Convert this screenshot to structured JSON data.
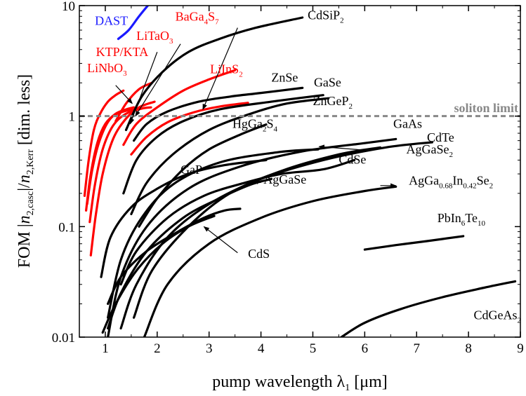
{
  "chart_data": {
    "type": "line",
    "title": "",
    "x_axis": {
      "label": "pump wavelength λ",
      "label_sub": "1",
      "label_unit": " [μm]",
      "range": [
        0.5,
        9
      ],
      "ticks": [
        1,
        2,
        3,
        4,
        5,
        6,
        7,
        8,
        9
      ]
    },
    "y_axis": {
      "label_prefix": "FOM |",
      "n1": "n",
      "n1_sub": "2,casc",
      "mid": "|/",
      "n2": "n",
      "n2_sub": "2,Kerr",
      "label_suffix": " [dim. less]",
      "scale": "log",
      "range": [
        0.01,
        10
      ],
      "ticks": [
        {
          "value": 0.01,
          "label": "0.01"
        },
        {
          "value": 0.1,
          "label": "0.1"
        },
        {
          "value": 1,
          "label": "1"
        },
        {
          "value": 10,
          "label": "10"
        }
      ]
    },
    "reference_line": {
      "value": 1,
      "label": "soliton limit",
      "color": "#888888"
    },
    "series": [
      {
        "color": "#1a1aff",
        "points": [
          [
            1.25,
            5.0
          ],
          [
            1.45,
            6.0
          ],
          [
            1.65,
            8.0
          ],
          [
            1.82,
            10.0
          ]
        ]
      },
      {
        "color": "#ff0000",
        "points": [
          [
            0.6,
            0.19
          ],
          [
            0.68,
            0.4
          ],
          [
            0.78,
            0.75
          ],
          [
            0.9,
            1.05
          ],
          [
            1.05,
            1.35
          ],
          [
            1.2,
            1.55
          ],
          [
            1.35,
            1.7
          ]
        ]
      },
      {
        "color": "#ff0000",
        "points": [
          [
            0.63,
            0.14
          ],
          [
            0.72,
            0.3
          ],
          [
            0.85,
            0.58
          ],
          [
            1.0,
            0.85
          ],
          [
            1.2,
            1.05
          ],
          [
            1.4,
            1.15
          ],
          [
            1.55,
            1.2
          ]
        ]
      },
      {
        "color": "#ff0000",
        "points": [
          [
            0.65,
            0.16
          ],
          [
            0.75,
            0.33
          ],
          [
            0.9,
            0.62
          ],
          [
            1.1,
            0.95
          ],
          [
            1.35,
            1.1
          ],
          [
            1.6,
            1.15
          ]
        ]
      },
      {
        "color": "#ff0000",
        "points": [
          [
            0.7,
            0.11
          ],
          [
            0.8,
            0.24
          ],
          [
            0.95,
            0.5
          ],
          [
            1.15,
            0.82
          ],
          [
            1.4,
            1.05
          ],
          [
            1.7,
            1.17
          ],
          [
            1.88,
            1.2
          ]
        ]
      },
      {
        "color": "#ff0000",
        "points": [
          [
            0.72,
            0.055
          ],
          [
            0.82,
            0.13
          ],
          [
            0.95,
            0.3
          ],
          [
            1.15,
            0.62
          ],
          [
            1.4,
            0.95
          ],
          [
            1.65,
            1.2
          ],
          [
            1.95,
            1.35
          ]
        ]
      },
      {
        "color": "#ff0000",
        "points": [
          [
            1.2,
            0.9
          ],
          [
            1.4,
            1.3
          ],
          [
            1.65,
            1.75
          ],
          [
            1.9,
            2.0
          ]
        ]
      },
      {
        "color": "#ff0000",
        "points": [
          [
            1.35,
            0.55
          ],
          [
            1.6,
            0.85
          ],
          [
            2.0,
            1.2
          ],
          [
            2.5,
            1.7
          ],
          [
            3.0,
            2.15
          ],
          [
            3.5,
            2.6
          ]
        ]
      },
      {
        "color": "#ff0000",
        "points": [
          [
            1.5,
            0.45
          ],
          [
            1.8,
            0.65
          ],
          [
            2.2,
            0.88
          ],
          [
            2.7,
            1.08
          ],
          [
            3.2,
            1.22
          ],
          [
            3.75,
            1.32
          ]
        ]
      },
      {
        "color": "#000000",
        "points": [
          [
            1.4,
            0.75
          ],
          [
            1.7,
            1.5
          ],
          [
            2.1,
            2.5
          ],
          [
            2.6,
            3.8
          ],
          [
            3.2,
            5.0
          ],
          [
            3.9,
            6.3
          ],
          [
            4.8,
            7.8
          ]
        ]
      },
      {
        "color": "#000000",
        "points": [
          [
            1.55,
            0.6
          ],
          [
            1.8,
            0.85
          ],
          [
            2.2,
            1.1
          ],
          [
            2.8,
            1.35
          ],
          [
            3.4,
            1.5
          ],
          [
            4.0,
            1.62
          ],
          [
            4.8,
            1.8
          ]
        ]
      },
      {
        "color": "#000000",
        "points": [
          [
            1.35,
            0.2
          ],
          [
            1.6,
            0.4
          ],
          [
            2.0,
            0.65
          ],
          [
            2.5,
            0.9
          ],
          [
            3.2,
            1.15
          ],
          [
            4.2,
            1.35
          ],
          [
            5.2,
            1.55
          ]
        ]
      },
      {
        "color": "#000000",
        "points": [
          [
            1.5,
            0.13
          ],
          [
            1.8,
            0.25
          ],
          [
            2.3,
            0.45
          ],
          [
            3.0,
            0.75
          ],
          [
            3.8,
            1.05
          ],
          [
            4.5,
            1.3
          ],
          [
            5.3,
            1.45
          ]
        ]
      },
      {
        "color": "#000000",
        "points": [
          [
            1.65,
            0.1
          ],
          [
            2.0,
            0.18
          ],
          [
            2.5,
            0.33
          ],
          [
            3.0,
            0.5
          ],
          [
            3.6,
            0.68
          ],
          [
            4.1,
            0.84
          ]
        ]
      },
      {
        "color": "#000000",
        "points": [
          [
            0.92,
            0.035
          ],
          [
            1.1,
            0.08
          ],
          [
            1.5,
            0.15
          ],
          [
            2.0,
            0.22
          ],
          [
            2.6,
            0.3
          ],
          [
            3.3,
            0.36
          ],
          [
            4.1,
            0.4
          ]
        ]
      },
      {
        "color": "#000000",
        "points": [
          [
            1.05,
            0.015
          ],
          [
            1.3,
            0.05
          ],
          [
            1.7,
            0.12
          ],
          [
            2.3,
            0.24
          ],
          [
            3.2,
            0.38
          ],
          [
            4.3,
            0.47
          ],
          [
            5.1,
            0.5
          ]
        ]
      },
      {
        "color": "#000000",
        "points": [
          [
            1.05,
            0.01
          ],
          [
            1.3,
            0.035
          ],
          [
            1.8,
            0.1
          ],
          [
            2.6,
            0.22
          ],
          [
            3.6,
            0.35
          ],
          [
            4.8,
            0.48
          ],
          [
            6.0,
            0.57
          ],
          [
            6.6,
            0.62
          ]
        ]
      },
      {
        "color": "#000000",
        "points": [
          [
            1.3,
            0.012
          ],
          [
            1.6,
            0.03
          ],
          [
            2.2,
            0.08
          ],
          [
            3.0,
            0.16
          ],
          [
            4.0,
            0.27
          ],
          [
            5.2,
            0.4
          ],
          [
            6.4,
            0.52
          ],
          [
            7.3,
            0.58
          ]
        ]
      },
      {
        "color": "#000000",
        "points": [
          [
            1.55,
            0.015
          ],
          [
            1.9,
            0.04
          ],
          [
            2.6,
            0.1
          ],
          [
            3.4,
            0.2
          ],
          [
            4.4,
            0.32
          ],
          [
            5.5,
            0.45
          ],
          [
            6.3,
            0.52
          ]
        ]
      },
      {
        "color": "#000000",
        "points": [
          [
            1.3,
            0.03
          ],
          [
            1.6,
            0.06
          ],
          [
            2.2,
            0.12
          ],
          [
            2.9,
            0.19
          ],
          [
            3.7,
            0.25
          ],
          [
            4.4,
            0.3
          ],
          [
            5.2,
            0.33
          ],
          [
            5.8,
            0.4
          ]
        ]
      },
      {
        "color": "#000000",
        "points": [
          [
            1.05,
            0.012
          ],
          [
            1.3,
            0.025
          ],
          [
            1.8,
            0.06
          ],
          [
            2.5,
            0.12
          ],
          [
            3.2,
            0.18
          ],
          [
            3.8,
            0.24
          ],
          [
            4.2,
            0.27
          ]
        ]
      },
      {
        "color": "#000000",
        "points": [
          [
            1.75,
            0.01
          ],
          [
            2.2,
            0.03
          ],
          [
            3.0,
            0.07
          ],
          [
            4.0,
            0.12
          ],
          [
            5.0,
            0.17
          ],
          [
            6.0,
            0.21
          ],
          [
            6.6,
            0.23
          ]
        ]
      },
      {
        "color": "#000000",
        "points": [
          [
            1.05,
            0.02
          ],
          [
            1.3,
            0.035
          ],
          [
            1.8,
            0.06
          ],
          [
            2.4,
            0.09
          ],
          [
            2.9,
            0.12
          ],
          [
            3.3,
            0.14
          ],
          [
            3.6,
            0.145
          ]
        ]
      },
      {
        "color": "#000000",
        "points": [
          [
            0.95,
            0.011
          ],
          [
            1.2,
            0.02
          ],
          [
            1.6,
            0.04
          ],
          [
            2.1,
            0.07
          ],
          [
            2.6,
            0.1
          ],
          [
            3.1,
            0.125
          ]
        ]
      },
      {
        "color": "#000000",
        "points": [
          [
            6.0,
            0.062
          ],
          [
            6.6,
            0.068
          ],
          [
            7.2,
            0.074
          ],
          [
            7.9,
            0.082
          ]
        ]
      },
      {
        "color": "#000000",
        "points": [
          [
            5.55,
            0.01
          ],
          [
            6.0,
            0.0135
          ],
          [
            6.7,
            0.018
          ],
          [
            7.5,
            0.023
          ],
          [
            8.3,
            0.028
          ],
          [
            8.9,
            0.032
          ]
        ]
      }
    ],
    "labels": [
      {
        "text": "DAST",
        "sub": "",
        "text2": "",
        "sub2": "",
        "text3": "",
        "sub3": "",
        "color": "#1a1aff",
        "x": 0.8,
        "y": 6.7
      },
      {
        "text": "CdSiP",
        "sub": "2",
        "text2": "",
        "sub2": "",
        "text3": "",
        "sub3": "",
        "color": "#000000",
        "x": 4.9,
        "y": 7.5
      },
      {
        "text": "BaGa",
        "sub": "4",
        "text2": "S",
        "sub2": "7",
        "text3": "",
        "sub3": "",
        "color": "#ff0000",
        "x": 2.35,
        "y": 7.3
      },
      {
        "text": "LiTaO",
        "sub": "3",
        "text2": "",
        "sub2": "",
        "text3": "",
        "sub3": "",
        "color": "#ff0000",
        "x": 1.6,
        "y": 4.9
      },
      {
        "text": "KTP/KTA",
        "sub": "",
        "text2": "",
        "sub2": "",
        "text3": "",
        "sub3": "",
        "color": "#ff0000",
        "x": 0.82,
        "y": 3.5
      },
      {
        "text": "LiNbO",
        "sub": "3",
        "text2": "",
        "sub2": "",
        "text3": "",
        "sub3": "",
        "color": "#ff0000",
        "x": 0.65,
        "y": 2.5
      },
      {
        "text": "LiInS",
        "sub": "2",
        "text2": "",
        "sub2": "",
        "text3": "",
        "sub3": "",
        "color": "#ff0000",
        "x": 3.02,
        "y": 2.45
      },
      {
        "text": "ZnSe",
        "sub": "",
        "text2": "",
        "sub2": "",
        "text3": "",
        "sub3": "",
        "color": "#000000",
        "x": 4.2,
        "y": 2.05
      },
      {
        "text": "GaSe",
        "sub": "",
        "text2": "",
        "sub2": "",
        "text3": "",
        "sub3": "",
        "color": "#000000",
        "x": 5.02,
        "y": 1.85
      },
      {
        "text": "ZnGeP",
        "sub": "2",
        "text2": "",
        "sub2": "",
        "text3": "",
        "sub3": "",
        "color": "#000000",
        "x": 5.0,
        "y": 1.26
      },
      {
        "text": "HgGa",
        "sub": "2",
        "text2": "S",
        "sub2": "4",
        "text3": "",
        "sub3": "",
        "color": "#000000",
        "x": 3.45,
        "y": 0.78
      },
      {
        "text": "GaAs",
        "sub": "",
        "text2": "",
        "sub2": "",
        "text3": "",
        "sub3": "",
        "color": "#000000",
        "x": 6.55,
        "y": 0.78
      },
      {
        "text": "CdTe",
        "sub": "",
        "text2": "",
        "sub2": "",
        "text3": "",
        "sub3": "",
        "color": "#000000",
        "x": 7.2,
        "y": 0.59
      },
      {
        "text": "AgGaSe",
        "sub": "2",
        "text2": "",
        "sub2": "",
        "text3": "",
        "sub3": "",
        "color": "#000000",
        "x": 6.8,
        "y": 0.46
      },
      {
        "text": "CdSe",
        "sub": "",
        "text2": "",
        "sub2": "",
        "text3": "",
        "sub3": "",
        "color": "#000000",
        "x": 5.5,
        "y": 0.37
      },
      {
        "text": "GaP",
        "sub": "",
        "text2": "",
        "sub2": "",
        "text3": "",
        "sub3": "",
        "color": "#000000",
        "x": 2.45,
        "y": 0.3
      },
      {
        "text": "AgGaSe",
        "sub": "",
        "text2": "",
        "sub2": "",
        "text3": "",
        "sub3": "",
        "color": "#000000",
        "x": 4.05,
        "y": 0.245
      },
      {
        "text": "AgGa",
        "sub": "0.68",
        "text2": "In",
        "sub2": "0.42",
        "text3": "Se",
        "sub3": "2",
        "color": "#000000",
        "x": 6.85,
        "y": 0.24
      },
      {
        "text": "PbIn",
        "sub": "6",
        "text2": "Te",
        "sub2": "10",
        "text3": "",
        "sub3": "",
        "color": "#000000",
        "x": 7.4,
        "y": 0.11
      },
      {
        "text": "CdS",
        "sub": "",
        "text2": "",
        "sub2": "",
        "text3": "",
        "sub3": "",
        "color": "#000000",
        "x": 3.75,
        "y": 0.052
      },
      {
        "text": "CdGeAs",
        "sub": "2",
        "text2": "",
        "sub2": "",
        "text3": "",
        "sub3": "",
        "color": "#000000",
        "x": 8.1,
        "y": 0.0145
      }
    ],
    "arrows": [
      {
        "from": [
          3.55,
          6.3
        ],
        "to": [
          2.88,
          1.15
        ]
      },
      {
        "from": [
          2.45,
          4.5
        ],
        "to": [
          1.58,
          1.0
        ]
      },
      {
        "from": [
          2.0,
          3.8
        ],
        "to": [
          1.48,
          0.85
        ]
      },
      {
        "from": [
          1.2,
          1.9
        ],
        "to": [
          1.52,
          1.3
        ]
      },
      {
        "from": [
          6.05,
          0.49
        ],
        "to": [
          5.12,
          0.53
        ]
      },
      {
        "from": [
          4.0,
          0.25
        ],
        "to": [
          3.85,
          0.26
        ]
      },
      {
        "from": [
          6.3,
          0.235
        ],
        "to": [
          6.6,
          0.235
        ]
      },
      {
        "from": [
          3.55,
          0.058
        ],
        "to": [
          2.9,
          0.1
        ]
      }
    ]
  }
}
